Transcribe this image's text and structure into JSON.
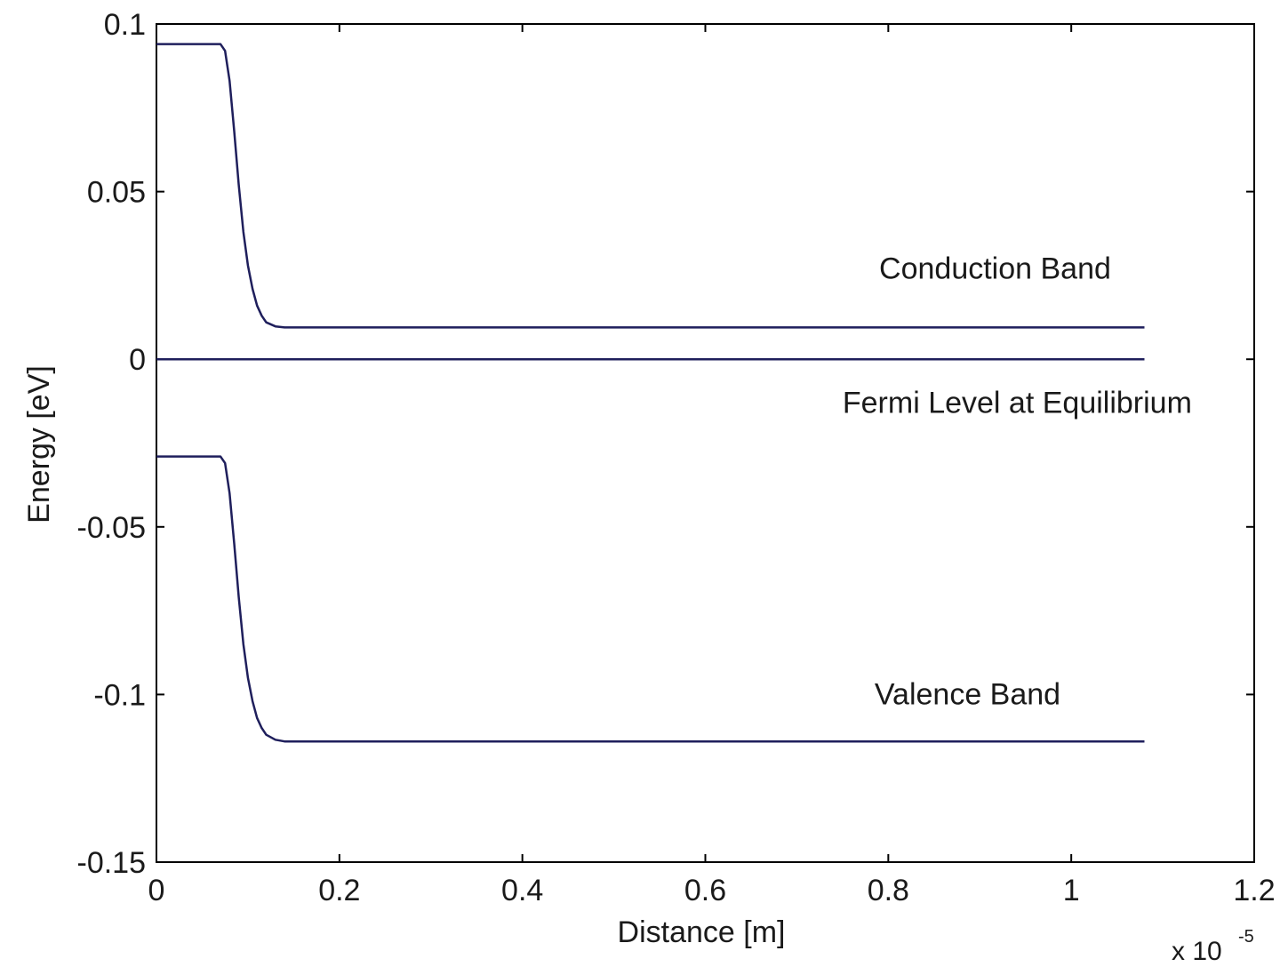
{
  "chart_data": {
    "type": "line",
    "xlabel": "Distance [m]",
    "ylabel": "Energy [eV]",
    "xlim": [
      0,
      1.2
    ],
    "ylim": [
      -0.15,
      0.1
    ],
    "x_ticks": [
      "0",
      "0.2",
      "0.4",
      "0.6",
      "0.8",
      "1",
      "1.2"
    ],
    "y_ticks": [
      "0.1",
      "0.05",
      "0",
      "-0.05",
      "-0.1",
      "-0.15"
    ],
    "x_tick_values": [
      0,
      0.2,
      0.4,
      0.6,
      0.8,
      1.0,
      1.2
    ],
    "y_tick_values": [
      0.1,
      0.05,
      0,
      -0.05,
      -0.1,
      -0.15
    ],
    "x_scale_multiplier": {
      "base": "x 10",
      "exponent": "-5"
    },
    "grid": false,
    "line_color": "#1f1f5c",
    "series": [
      {
        "x": [
          0,
          0.07,
          0.075,
          0.08,
          0.085,
          0.09,
          0.095,
          0.1,
          0.105,
          0.11,
          0.115,
          0.12,
          0.13,
          0.14,
          1.08
        ],
        "y": [
          0.094,
          0.094,
          0.092,
          0.083,
          0.068,
          0.052,
          0.038,
          0.028,
          0.021,
          0.016,
          0.013,
          0.011,
          0.0098,
          0.0095,
          0.0095
        ]
      },
      {
        "x": [
          0,
          1.08
        ],
        "y": [
          0,
          0
        ]
      },
      {
        "x": [
          0,
          0.07,
          0.075,
          0.08,
          0.085,
          0.09,
          0.095,
          0.1,
          0.105,
          0.11,
          0.115,
          0.12,
          0.13,
          0.14,
          1.08
        ],
        "y": [
          -0.029,
          -0.029,
          -0.031,
          -0.04,
          -0.055,
          -0.071,
          -0.085,
          -0.095,
          -0.102,
          -0.107,
          -0.11,
          -0.112,
          -0.1135,
          -0.114,
          -0.114
        ]
      }
    ],
    "annotations": [
      {
        "text": "Conduction Band",
        "x": 0.79,
        "y": 0.024
      },
      {
        "text": "Fermi Level at Equilibrium",
        "x": 0.75,
        "y": -0.016
      },
      {
        "text": "Valence Band",
        "x": 0.785,
        "y": -0.103
      }
    ]
  }
}
